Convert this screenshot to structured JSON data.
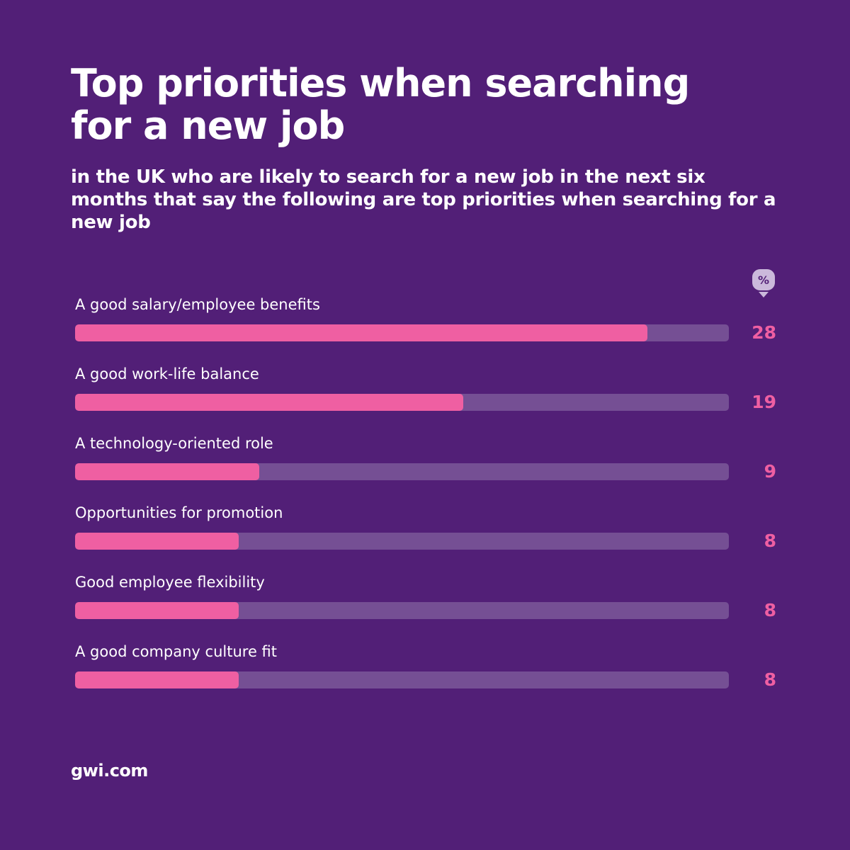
{
  "title": "Top priorities when searching for a new job",
  "subtitle": "in the UK who are likely to search for a new job in the next six months that say the following are top priorities when searching for a new job",
  "unit_badge": "%",
  "footer": "gwi.com",
  "colors": {
    "background": "#521f77",
    "bar_fill": "#ef5fa2",
    "bar_track": "#754f94",
    "value_text": "#ef5fa2"
  },
  "chart_data": {
    "type": "bar",
    "orientation": "horizontal",
    "categories": [
      "A good salary/employee benefits",
      "A good work-life balance",
      "A technology-oriented role",
      "Opportunities for promotion",
      "Good employee flexibility",
      "A good company culture fit"
    ],
    "values": [
      28,
      19,
      9,
      8,
      8,
      8
    ],
    "xlim": [
      0,
      32
    ],
    "grid": false
  }
}
